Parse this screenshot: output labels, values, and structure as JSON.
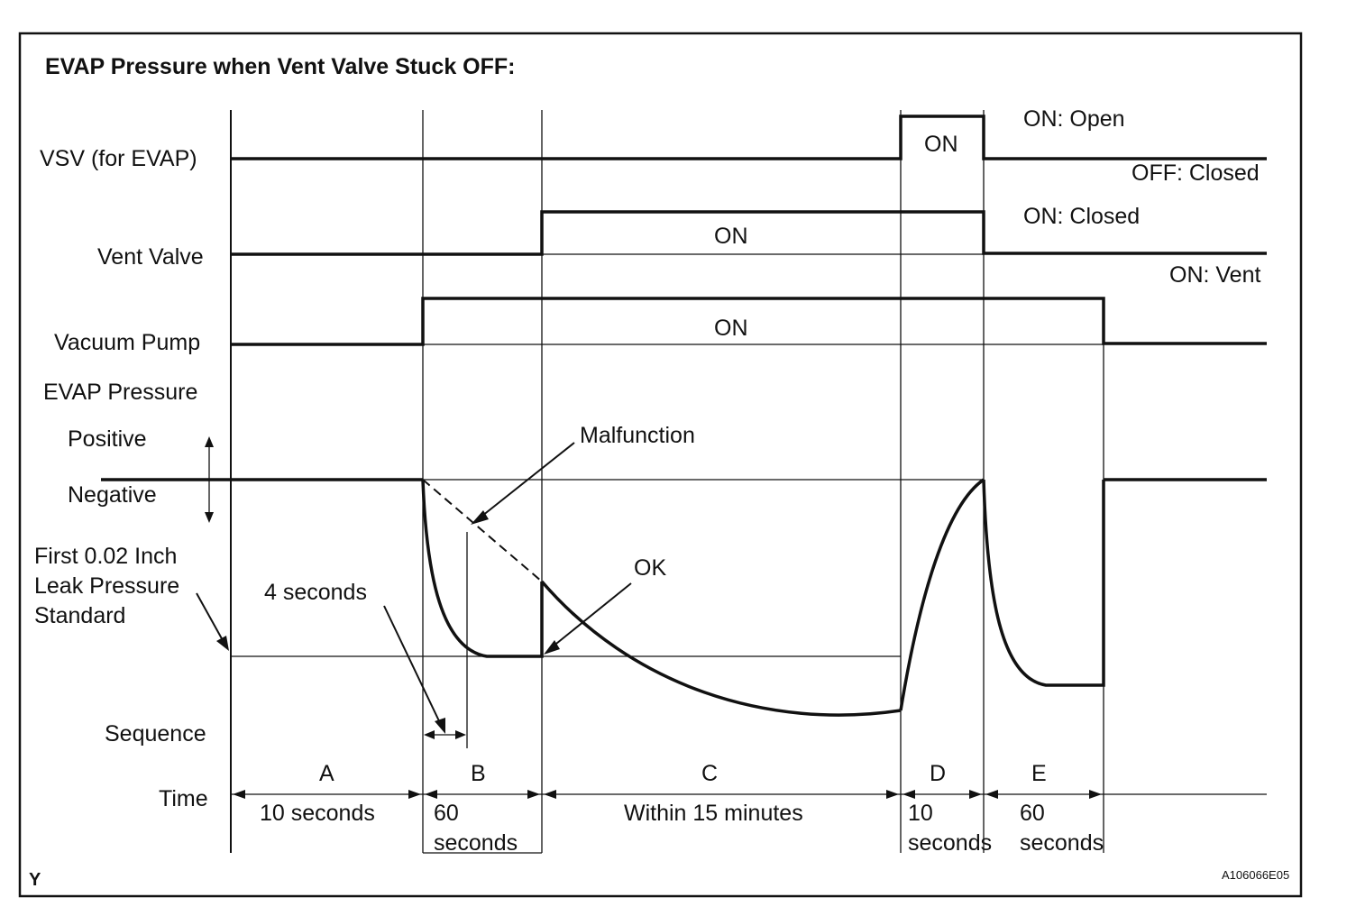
{
  "title": "EVAP Pressure when Vent Valve Stuck OFF:",
  "rows": {
    "vsv": "VSV (for EVAP)",
    "vent_valve": "Vent Valve",
    "vacuum_pump": "Vacuum Pump",
    "evap_pressure": "EVAP Pressure",
    "positive": "Positive",
    "negative": "Negative",
    "leak_standard_1": "First 0.02 Inch",
    "leak_standard_2": "Leak Pressure",
    "leak_standard_3": "Standard",
    "sequence": "Sequence",
    "time": "Time"
  },
  "states": {
    "vsv_on": "ON",
    "vent_on": "ON",
    "pump_on": "ON"
  },
  "legend": {
    "vsv_on": "ON: Open",
    "vsv_off": "OFF: Closed",
    "vent_on": "ON: Closed",
    "vent_off": "ON: Vent"
  },
  "annotations": {
    "malfunction": "Malfunction",
    "ok": "OK",
    "four_seconds": "4 seconds"
  },
  "sequence": [
    {
      "letter": "A",
      "time": "10 seconds"
    },
    {
      "letter": "B",
      "time_1": "60",
      "time_2": "seconds"
    },
    {
      "letter": "C",
      "time": "Within 15 minutes"
    },
    {
      "letter": "D",
      "time_1": "10",
      "time_2": "seconds"
    },
    {
      "letter": "E",
      "time_1": "60",
      "time_2": "seconds"
    }
  ],
  "footer": {
    "left": "Y",
    "right": "A106066E05"
  }
}
